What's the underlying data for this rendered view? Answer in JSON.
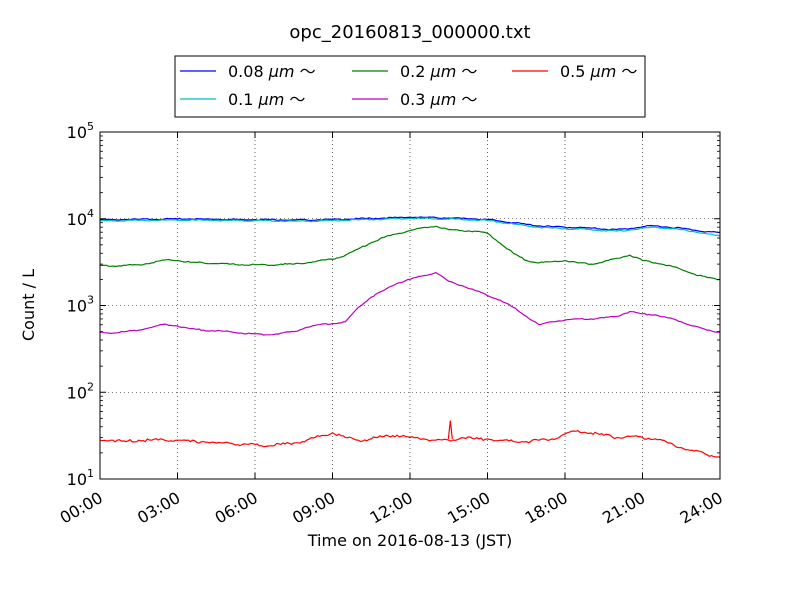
{
  "chart_data": {
    "type": "line",
    "title": "opc_20160813_000000.txt",
    "xlabel": "Time on 2016-08-13 (JST)",
    "ylabel": "Count / L",
    "yscale": "log",
    "xlim": [
      "00:00",
      "24:00"
    ],
    "ylim": [
      10,
      100000
    ],
    "grid": true,
    "legend_placement": "top-center",
    "x_ticks": [
      "00:00",
      "03:00",
      "06:00",
      "09:00",
      "12:00",
      "15:00",
      "18:00",
      "21:00",
      "24:00"
    ],
    "y_ticks": [
      {
        "value": 10,
        "base": "10",
        "exp": "1"
      },
      {
        "value": 100,
        "base": "10",
        "exp": "2"
      },
      {
        "value": 1000,
        "base": "10",
        "exp": "3"
      },
      {
        "value": 10000,
        "base": "10",
        "exp": "4"
      },
      {
        "value": 100000,
        "base": "10",
        "exp": "5"
      }
    ],
    "x_hours": [
      0,
      0.5,
      1,
      1.5,
      2,
      2.5,
      3,
      3.5,
      4,
      4.5,
      5,
      5.5,
      6,
      6.5,
      7,
      7.5,
      8,
      8.5,
      9,
      9.5,
      10,
      10.5,
      11,
      11.5,
      12,
      12.5,
      13,
      13.5,
      14,
      14.5,
      15,
      15.5,
      16,
      16.5,
      17,
      17.5,
      18,
      18.5,
      19,
      19.5,
      20,
      20.5,
      21,
      21.5,
      22,
      22.5,
      23,
      23.5,
      24
    ],
    "series": [
      {
        "name": "0.08 μm ～",
        "color": "#0000ff",
        "values": [
          9700,
          9750,
          9800,
          9850,
          9900,
          9950,
          9950,
          9950,
          9900,
          9900,
          9850,
          9850,
          9800,
          9800,
          9750,
          9700,
          9700,
          9750,
          9800,
          9900,
          10000,
          10100,
          10200,
          10300,
          10400,
          10400,
          10300,
          10200,
          10100,
          10000,
          9800,
          9400,
          9000,
          8600,
          8300,
          8100,
          8000,
          7900,
          7800,
          7600,
          7500,
          7700,
          8100,
          8300,
          8000,
          7800,
          7400,
          7100,
          6900
        ]
      },
      {
        "name": "0.1 μm ～",
        "color": "#00bfbf",
        "values": [
          9400,
          9450,
          9500,
          9550,
          9600,
          9650,
          9650,
          9650,
          9600,
          9600,
          9550,
          9550,
          9500,
          9500,
          9450,
          9400,
          9400,
          9450,
          9500,
          9600,
          9700,
          9800,
          9900,
          10000,
          10100,
          10100,
          10000,
          9900,
          9800,
          9700,
          9500,
          9100,
          8700,
          8300,
          8000,
          7800,
          7700,
          7600,
          7500,
          7300,
          7200,
          7400,
          7800,
          8000,
          7700,
          7500,
          7100,
          6700,
          6300
        ]
      },
      {
        "name": "0.2 μm ～",
        "color": "#008000",
        "values": [
          2900,
          2850,
          2900,
          2950,
          3100,
          3350,
          3300,
          3150,
          3100,
          3050,
          3000,
          2950,
          2950,
          2900,
          3000,
          3000,
          3100,
          3300,
          3400,
          3800,
          4500,
          5300,
          6100,
          6700,
          7300,
          7900,
          8200,
          7500,
          7300,
          7200,
          6800,
          5200,
          4000,
          3300,
          3100,
          3200,
          3300,
          3100,
          3000,
          3200,
          3500,
          3800,
          3300,
          3100,
          2900,
          2600,
          2300,
          2100,
          2000
        ]
      },
      {
        "name": "0.3 μm ～",
        "color": "#bf00bf",
        "values": [
          490,
          480,
          500,
          520,
          560,
          610,
          580,
          540,
          520,
          510,
          500,
          480,
          470,
          460,
          480,
          500,
          560,
          600,
          620,
          650,
          950,
          1250,
          1500,
          1800,
          2000,
          2200,
          2400,
          1900,
          1700,
          1500,
          1300,
          1150,
          950,
          750,
          600,
          650,
          680,
          700,
          700,
          720,
          750,
          850,
          800,
          780,
          720,
          650,
          580,
          520,
          490
        ]
      },
      {
        "name": "0.5 μm ～",
        "color": "#ff0000",
        "values": [
          28,
          28,
          27,
          28,
          28,
          28,
          28,
          27,
          27,
          26,
          26,
          25,
          25,
          24,
          25,
          26,
          28,
          31,
          34,
          30,
          28,
          29,
          31,
          32,
          30,
          29,
          28,
          28,
          30,
          29,
          29,
          28,
          27,
          27,
          28,
          29,
          33,
          36,
          34,
          32,
          30,
          31,
          30,
          29,
          26,
          23,
          21,
          19,
          18
        ]
      },
      {
        "name": "",
        "color": "#ff0000",
        "values": [],
        "spike": {
          "x": 13.6,
          "y": 47
        }
      }
    ],
    "legend_entries": [
      {
        "label_num": "0.08",
        "label_unit": "μm",
        "label_tail": "～",
        "color": "#0000ff"
      },
      {
        "label_num": "0.1",
        "label_unit": "μm",
        "label_tail": "～",
        "color": "#00bfbf"
      },
      {
        "label_num": "0.2",
        "label_unit": "μm",
        "label_tail": "～",
        "color": "#008000"
      },
      {
        "label_num": "0.3",
        "label_unit": "μm",
        "label_tail": "～",
        "color": "#bf00bf"
      },
      {
        "label_num": "0.5",
        "label_unit": "μm",
        "label_tail": "～",
        "color": "#ff0000"
      }
    ]
  }
}
